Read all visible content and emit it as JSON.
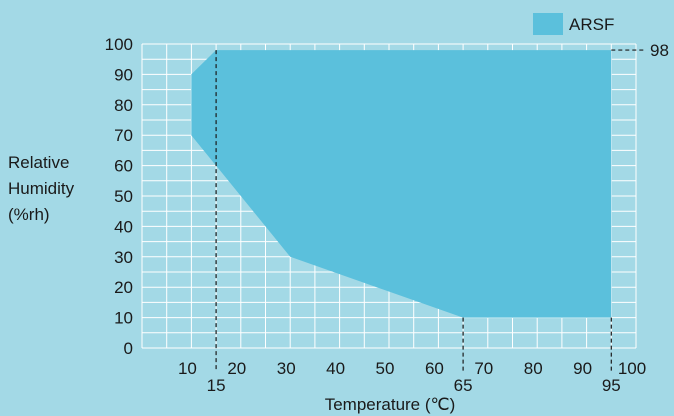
{
  "chart_data": {
    "type": "area",
    "title": "",
    "xlabel": "Temperature (℃)",
    "ylabel_lines": [
      "Relative",
      "Humidity",
      "(%rh)"
    ],
    "xlim": [
      0,
      100
    ],
    "ylim": [
      0,
      100
    ],
    "x_ticks": [
      10,
      20,
      30,
      40,
      50,
      60,
      70,
      80,
      90,
      100
    ],
    "y_ticks": [
      0,
      10,
      20,
      30,
      40,
      50,
      60,
      70,
      80,
      90,
      100
    ],
    "grid": true,
    "legend": {
      "position": "top-right",
      "label": "ARSF"
    },
    "series": [
      {
        "name": "ARSF",
        "region_polygon": [
          [
            15,
            98
          ],
          [
            95,
            98
          ],
          [
            95,
            10
          ],
          [
            65,
            10
          ],
          [
            30,
            30
          ],
          [
            20,
            50
          ],
          [
            15,
            60
          ],
          [
            10,
            70
          ],
          [
            10,
            90
          ]
        ]
      }
    ],
    "extra_region": {
      "polygon": [
        [
          10,
          90
        ],
        [
          15,
          98
        ],
        [
          15,
          60
        ],
        [
          10,
          70
        ]
      ]
    },
    "markers": [
      {
        "axis": "x",
        "value": 15,
        "label": "15",
        "y_to": 98
      },
      {
        "axis": "x",
        "value": 65,
        "label": "65",
        "y_to": 10
      },
      {
        "axis": "x",
        "value": 95,
        "label": "95",
        "y_to": 10
      },
      {
        "axis": "y",
        "value": 98,
        "label": "98",
        "x_from": 95
      }
    ],
    "colors": {
      "background": "#a3d9e6",
      "region": "#5bc0dc",
      "extra_region": "#5bc0dc",
      "grid": "#ffffff",
      "text": "#1a1a1a"
    }
  }
}
